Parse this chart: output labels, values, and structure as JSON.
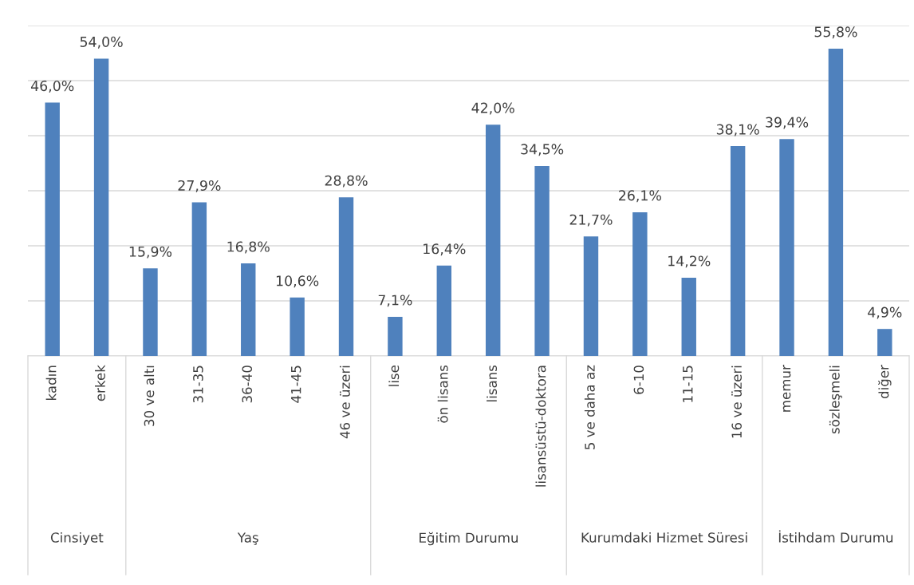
{
  "chart_data": {
    "type": "bar",
    "categories": [
      "kadın",
      "erkek",
      "30 ve altı",
      "31-35",
      "36-40",
      "41-45",
      "46 ve üzeri",
      "lise",
      "ön lisans",
      "lisans",
      "lisansüstü-doktora",
      "5 ve daha az",
      "6-10",
      "11-15",
      "16 ve üzeri",
      "memur",
      "sözleşmeli",
      "diğer"
    ],
    "values": [
      46.0,
      54.0,
      15.9,
      27.9,
      16.8,
      10.6,
      28.8,
      7.1,
      16.4,
      42.0,
      34.5,
      21.7,
      26.1,
      14.2,
      38.1,
      39.4,
      55.8,
      4.9
    ],
    "value_labels": [
      "46,0%",
      "54,0%",
      "15,9%",
      "27,9%",
      "16,8%",
      "10,6%",
      "28,8%",
      "7,1%",
      "16,4%",
      "42,0%",
      "34,5%",
      "21,7%",
      "26,1%",
      "14,2%",
      "38,1%",
      "39,4%",
      "55,8%",
      "4,9%"
    ],
    "color": "#4f81bd",
    "ylim": [
      0,
      60
    ],
    "yticks": [
      {
        "value": 0,
        "label": null
      },
      {
        "value": 10,
        "label": null
      },
      {
        "value": 20,
        "label": null
      },
      {
        "value": 30,
        "label": null
      },
      {
        "value": 40,
        "label": null
      },
      {
        "value": 50,
        "label": null
      },
      {
        "value": 60,
        "label": null
      }
    ],
    "grid": "y",
    "tick_labels": "x",
    "annotations": [
      "Cinsiyet",
      "Yaş",
      "Eğitim Durumu",
      "Kurumdaki Hizmet Süresi",
      "İstihdam Durumu"
    ]
  }
}
